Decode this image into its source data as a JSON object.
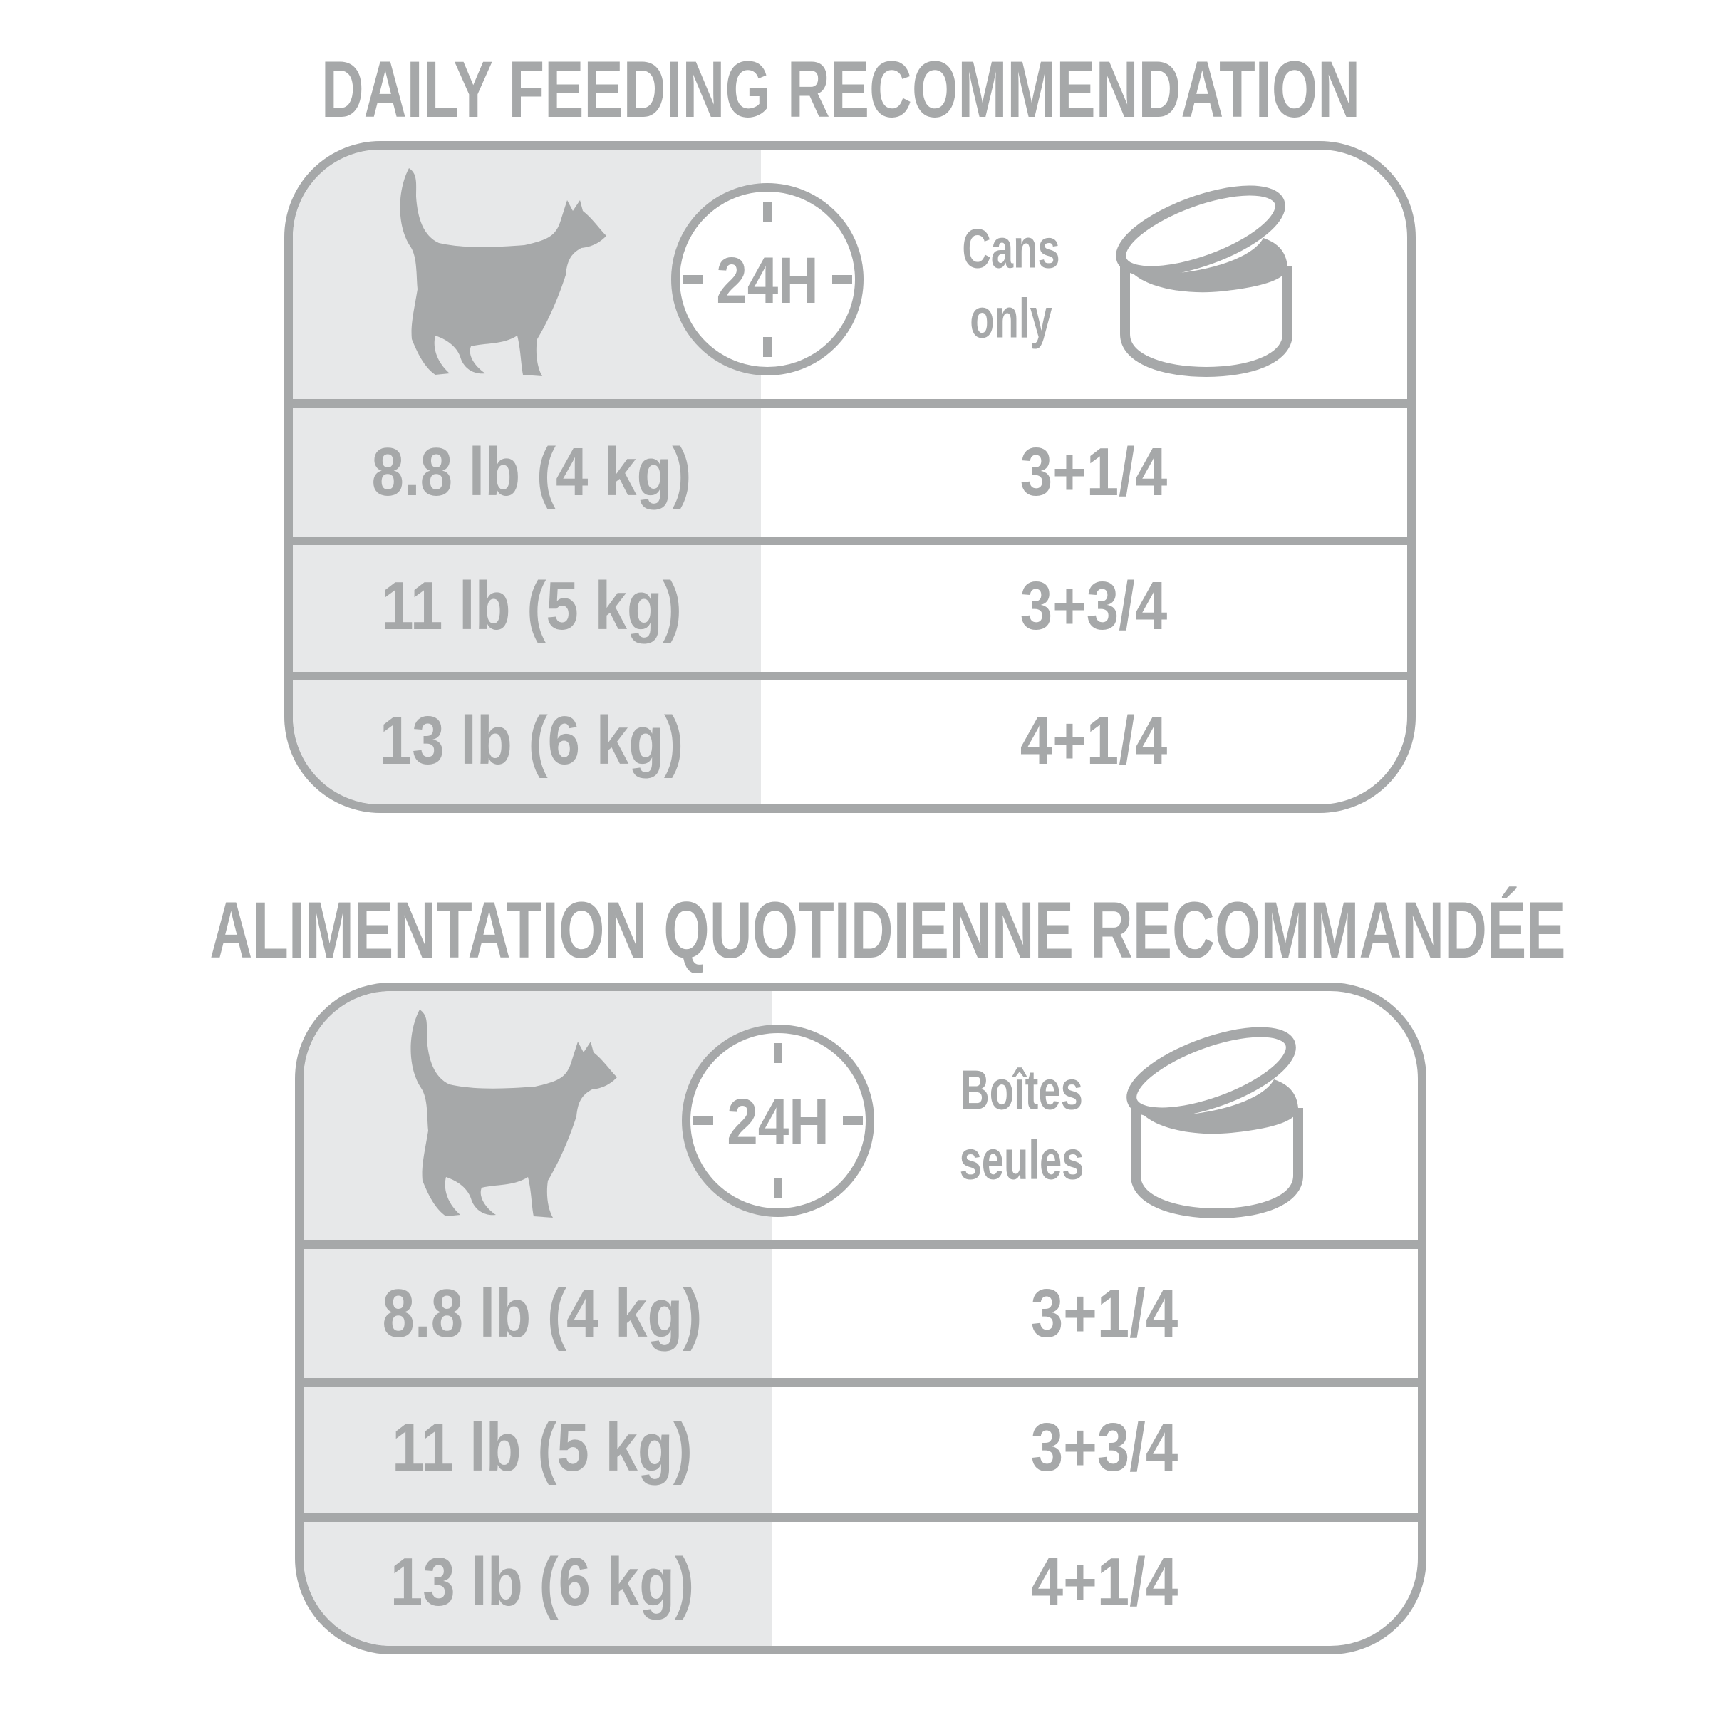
{
  "colors": {
    "primary": "#a6a8a9",
    "light_bg": "#e7e8e9",
    "background": "#ffffff"
  },
  "panels": [
    {
      "title": "DAILY FEEDING RECOMMENDATION",
      "clock_label": "24H",
      "food_line1": "Cans",
      "food_line2": "only",
      "icons": [
        "cat-icon",
        "clock-24h-icon",
        "open-can-icon"
      ],
      "rows": [
        {
          "weight": "8.8 lb (4 kg)",
          "amount": "3+1/4"
        },
        {
          "weight": "11 lb (5 kg)",
          "amount": "3+3/4"
        },
        {
          "weight": "13 lb (6 kg)",
          "amount": "4+1/4"
        }
      ]
    },
    {
      "title": "ALIMENTATION QUOTIDIENNE RECOMMANDÉE",
      "clock_label": "24H",
      "food_line1": "Boîtes",
      "food_line2": "seules",
      "icons": [
        "cat-icon",
        "clock-24h-icon",
        "open-can-icon"
      ],
      "rows": [
        {
          "weight": "8.8 lb (4 kg)",
          "amount": "3+1/4"
        },
        {
          "weight": "11 lb (5 kg)",
          "amount": "3+3/4"
        },
        {
          "weight": "13 lb (6 kg)",
          "amount": "4+1/4"
        }
      ]
    }
  ]
}
